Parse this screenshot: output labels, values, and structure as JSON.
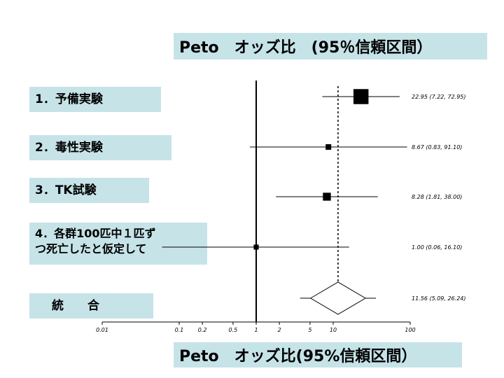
{
  "title": "Peto　オッズ比　(95％信頼区間）",
  "xlabel": "Peto　オッズ比(95%信頼区間）",
  "chart_data": {
    "type": "forest",
    "x_scale": "log",
    "xlim": [
      0.01,
      100
    ],
    "x_ticks": [
      0.01,
      0.1,
      0.2,
      0.5,
      1,
      2,
      5,
      10,
      100
    ],
    "x_tick_labels": [
      "0.01",
      "0.1",
      "0.2",
      "0.5",
      "1",
      "2",
      "5",
      "10",
      "100"
    ],
    "reference_line": 1,
    "pooled_line": 11.56,
    "studies": [
      {
        "label": "1．予備実験",
        "or": 22.95,
        "ci": [
          7.22,
          72.95
        ],
        "ci_text": "22.95 (7.22, 72.95)",
        "weight": 3.0
      },
      {
        "label": "2．毒性実験",
        "or": 8.67,
        "ci": [
          0.83,
          91.1
        ],
        "ci_text": "8.67 (0.83, 91.10)",
        "weight": 1.0
      },
      {
        "label": "3．TK試験",
        "or": 8.28,
        "ci": [
          1.81,
          38.0
        ],
        "ci_text": "8.28 (1.81, 38.00)",
        "weight": 2.0
      },
      {
        "label": "4．各群100匹中１匹ず\nつ死亡したと仮定して",
        "or": 1.0,
        "ci": [
          0.06,
          16.1
        ],
        "ci_text": "1.00 (0.06, 16.10)",
        "weight": 0.8
      }
    ],
    "pooled": {
      "label": "統　　合",
      "or": 11.56,
      "ci": [
        5.09,
        26.24
      ],
      "ci_text": "11.56 (5.09, 26.24)"
    }
  }
}
